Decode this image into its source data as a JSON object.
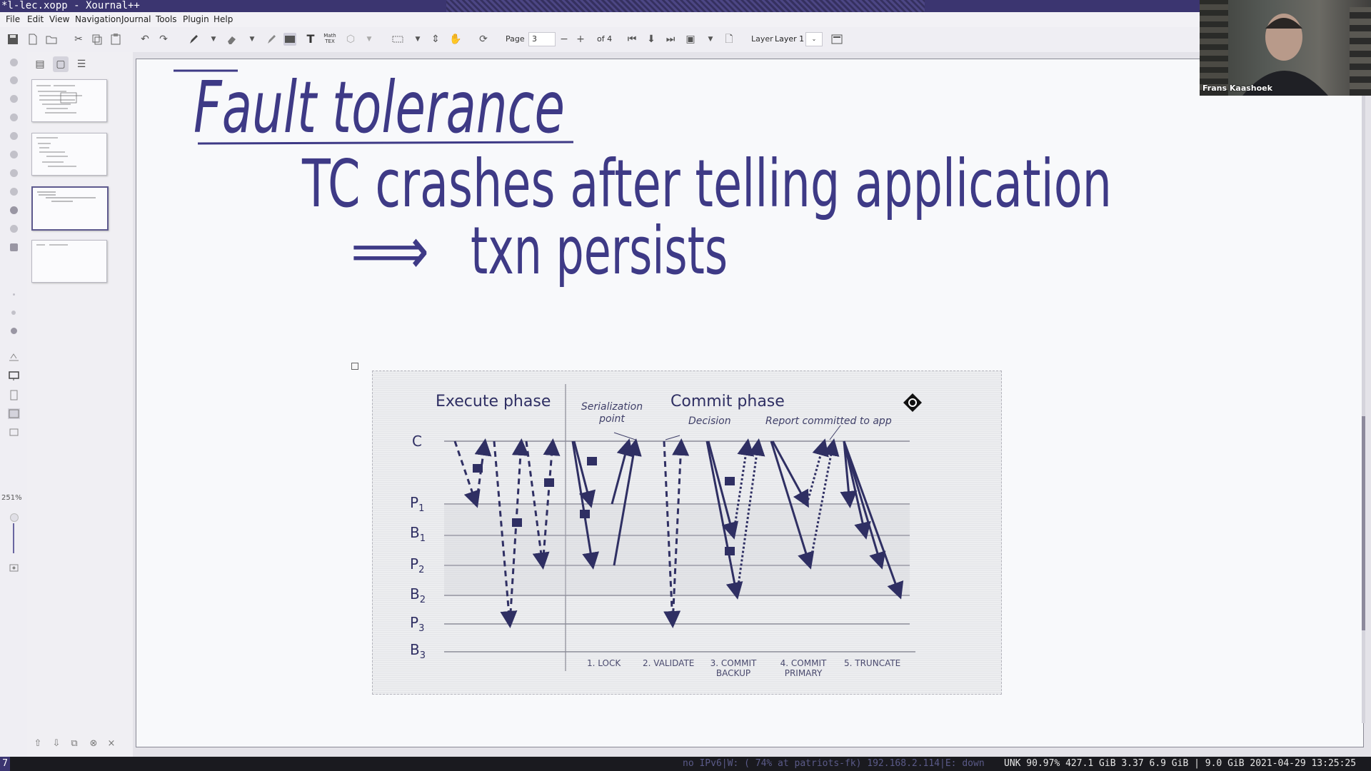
{
  "window": {
    "title": "*l-lec.xopp - Xournal++"
  },
  "menu": [
    "File",
    "Edit",
    "View",
    "Navigation",
    "Journal",
    "Tools",
    "Plugin",
    "Help"
  ],
  "toolbar": {
    "page_label": "Page",
    "page_value": "3",
    "page_of": "of 4",
    "layer_label": "Layer",
    "layer_value": "Layer 1",
    "math_tex": "Math TEX"
  },
  "left_tools": {
    "zoom": "251%"
  },
  "sidebar": {
    "pages": [
      1,
      2,
      3,
      4
    ],
    "selected_page": 3
  },
  "page": {
    "handwriting": {
      "heading": "Fault tolerance",
      "line1": "TC crashes after telling application",
      "line2_arrow": "⟹",
      "line2": "txn persists"
    },
    "diagram": {
      "phase_execute": "Execute phase",
      "phase_commit": "Commit phase",
      "annotations": {
        "serialization": "Serialization point",
        "decision": "Decision",
        "report": "Report committed to app"
      },
      "rows": [
        {
          "name": "C",
          "sub": ""
        },
        {
          "name": "P",
          "sub": "1"
        },
        {
          "name": "B",
          "sub": "1"
        },
        {
          "name": "P",
          "sub": "2"
        },
        {
          "name": "B",
          "sub": "2"
        },
        {
          "name": "P",
          "sub": "3"
        },
        {
          "name": "B",
          "sub": "3"
        }
      ],
      "steps": [
        {
          "line1": "1. LOCK",
          "line2": ""
        },
        {
          "line1": "2. VALIDATE",
          "line2": ""
        },
        {
          "line1": "3. COMMIT",
          "line2": "BACKUP"
        },
        {
          "line1": "4. COMMIT",
          "line2": "PRIMARY"
        },
        {
          "line1": "5. TRUNCATE",
          "line2": ""
        }
      ]
    }
  },
  "webcam": {
    "name": "Frans Kaashoek"
  },
  "statusbar": {
    "workspace": "7",
    "network": "no IPv6|W: ( 74% at patriots-fk) 192.168.2.114|E: down",
    "stats": "UNK 90.97% 427.1 GiB 3.37 6.9 GiB | 9.0 GiB 2021-04-29 13:25:25"
  },
  "colors": {
    "ink": "#3e3a86",
    "diagram_ink": "#2f2f63",
    "titlebar": "#3b3570"
  }
}
